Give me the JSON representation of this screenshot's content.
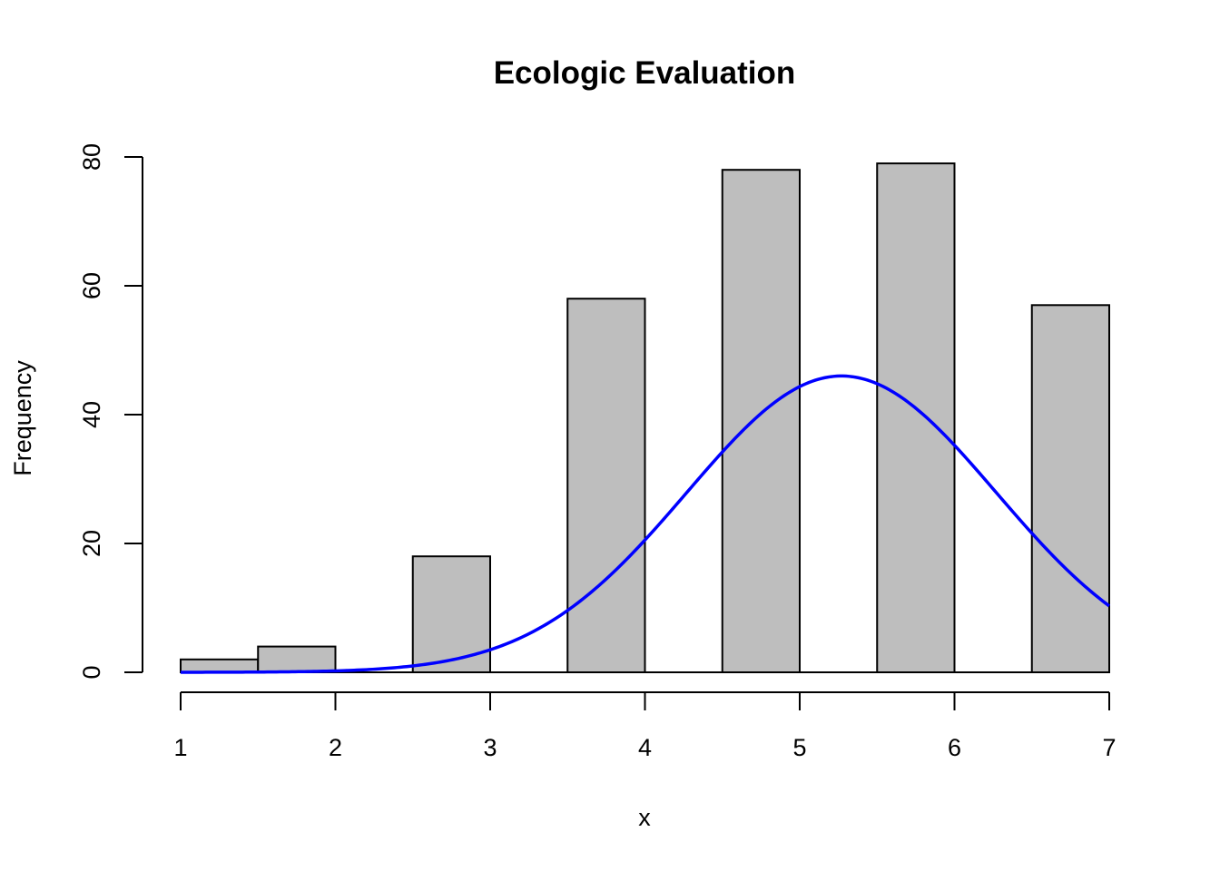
{
  "chart_data": {
    "type": "bar",
    "title": "Ecologic Evaluation",
    "xlabel": "x",
    "ylabel": "Frequency",
    "xlim": [
      1,
      7
    ],
    "ylim": [
      0,
      80
    ],
    "x_ticks": [
      1,
      2,
      3,
      4,
      5,
      6,
      7
    ],
    "y_ticks": [
      0,
      20,
      40,
      60,
      80
    ],
    "bins": [
      {
        "x0": 1.0,
        "x1": 1.5,
        "count": 2
      },
      {
        "x0": 1.5,
        "x1": 2.0,
        "count": 4
      },
      {
        "x0": 2.0,
        "x1": 2.5,
        "count": 0
      },
      {
        "x0": 2.5,
        "x1": 3.0,
        "count": 18
      },
      {
        "x0": 3.0,
        "x1": 3.5,
        "count": 0
      },
      {
        "x0": 3.5,
        "x1": 4.0,
        "count": 58
      },
      {
        "x0": 4.0,
        "x1": 4.5,
        "count": 0
      },
      {
        "x0": 4.5,
        "x1": 5.0,
        "count": 78
      },
      {
        "x0": 5.0,
        "x1": 5.5,
        "count": 0
      },
      {
        "x0": 5.5,
        "x1": 6.0,
        "count": 79
      },
      {
        "x0": 6.0,
        "x1": 6.5,
        "count": 0
      },
      {
        "x0": 6.5,
        "x1": 7.0,
        "count": 57
      }
    ],
    "bar_color": "#bebebe",
    "curve": {
      "type": "normal-density",
      "mean": 5.27,
      "sd": 1.0,
      "peak": 46,
      "color": "#0000ff"
    },
    "grid": false,
    "legend": "none"
  }
}
